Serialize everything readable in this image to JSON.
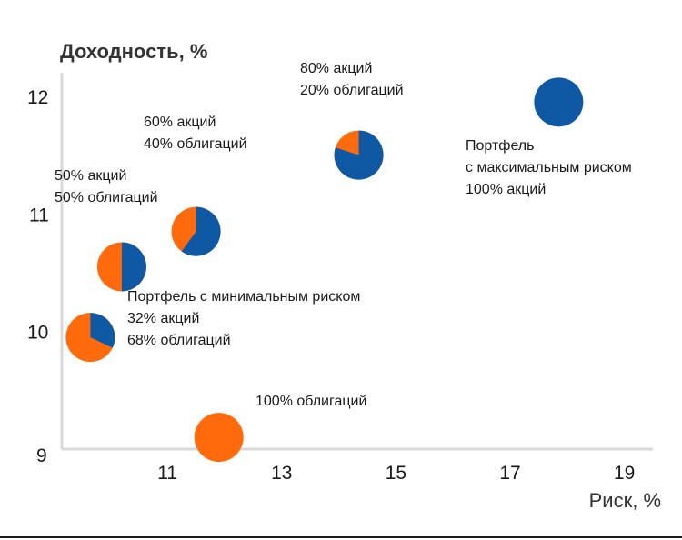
{
  "chart_data": {
    "type": "scatter",
    "xlabel": "Риск, %",
    "ylabel": "Доходность, %",
    "x_ticks": [
      "11",
      "13",
      "15",
      "17",
      "19"
    ],
    "y_ticks": [
      "9",
      "10",
      "11",
      "12"
    ],
    "xlim": [
      9.15,
      19.5
    ],
    "ylim": [
      9,
      12.2
    ],
    "colors": {
      "stocks": "#0f58a4",
      "bonds": "#ff6a0d",
      "axis": "#d9d9d9"
    },
    "points": [
      {
        "name": "bonds-100",
        "x": 11.9,
        "y": 9.1,
        "stocks_share": 0,
        "label_lines": [
          "100% облигаций"
        ]
      },
      {
        "name": "min-risk",
        "x": 9.65,
        "y": 9.95,
        "stocks_share": 0.32,
        "label_lines": [
          "Портфель с минимальным риском",
          "32% акций",
          "68% облигаций"
        ]
      },
      {
        "name": "stocks-50",
        "x": 10.2,
        "y": 10.55,
        "stocks_share": 0.5,
        "label_lines": [
          "50% акций",
          "50% облигаций"
        ]
      },
      {
        "name": "stocks-60",
        "x": 11.5,
        "y": 10.85,
        "stocks_share": 0.6,
        "label_lines": [
          "60% акций",
          "40% облигаций"
        ]
      },
      {
        "name": "stocks-80",
        "x": 14.35,
        "y": 11.5,
        "stocks_share": 0.8,
        "label_lines": [
          "80% акций",
          "20% облигаций"
        ]
      },
      {
        "name": "max-risk",
        "x": 17.85,
        "y": 11.95,
        "stocks_share": 1,
        "label_lines": [
          "Портфель",
          "с максимальным риском",
          "100% акций"
        ]
      }
    ]
  }
}
